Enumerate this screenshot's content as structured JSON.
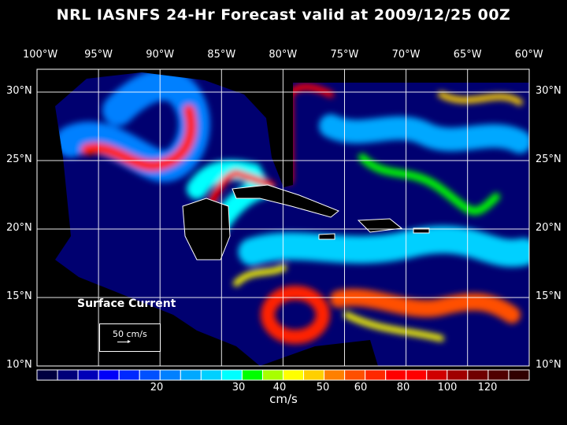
{
  "title": "NRL IASNFS  24-Hr Forecast valid at 2009/12/25 00Z",
  "lon_labels": [
    "100°W",
    "95°W",
    "90°W",
    "85°W",
    "80°W",
    "75°W",
    "70°W",
    "65°W",
    "60°W"
  ],
  "lat_labels": [
    "30°N",
    "25°N",
    "20°N",
    "15°N",
    "10°N"
  ],
  "legend": {
    "title": "Surface Current",
    "reference": "50 cm/s"
  },
  "colorbar": {
    "unit": "cm/s",
    "tick_labels": [
      "20",
      "30",
      "40",
      "50",
      "60",
      "80",
      "100",
      "120"
    ],
    "colors": [
      "#000040",
      "#00007a",
      "#0000b8",
      "#0000f8",
      "#0028ff",
      "#0050ff",
      "#0080ff",
      "#00a8ff",
      "#00d0ff",
      "#00ffff",
      "#00ff00",
      "#a8ff00",
      "#ffff00",
      "#ffd000",
      "#ff8000",
      "#ff5000",
      "#ff2800",
      "#ff0000",
      "#ff0000",
      "#d00000",
      "#a00000",
      "#700000",
      "#500000",
      "#300000"
    ]
  }
}
